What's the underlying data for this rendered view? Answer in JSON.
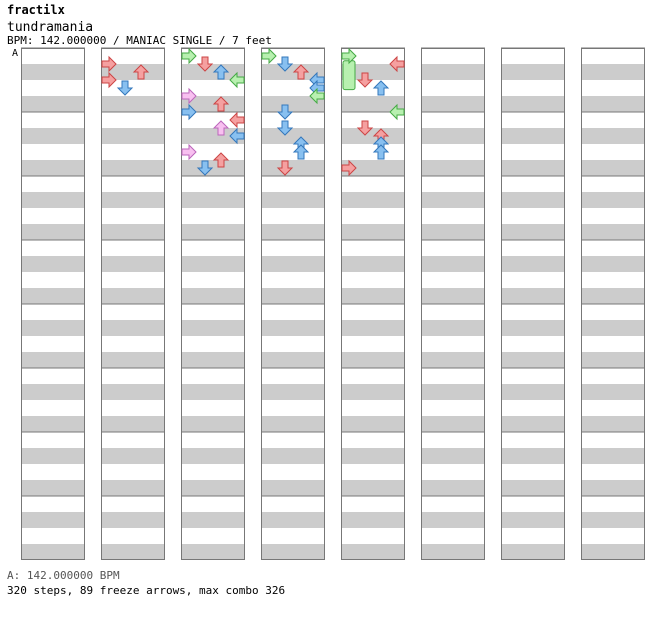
{
  "header": {
    "artist": "fractilx",
    "title": "tundramania",
    "meta": "BPM: 142.000000 / MANIAC SINGLE / 7 feet"
  },
  "bpm_marker": "A",
  "footer": {
    "bpm": "A: 142.000000 BPM",
    "steps": "320 steps, 89 freeze arrows, max combo 326"
  },
  "colors": {
    "stripe": "#cccccc",
    "border": "#777777",
    "red": "#f5a0a0",
    "red_stroke": "#cc4444",
    "blue": "#88c0f0",
    "blue_stroke": "#3377bb",
    "green": "#b8f0b0",
    "green_stroke": "#44aa44",
    "pink": "#f8c0f0",
    "pink_stroke": "#bb66bb"
  },
  "chart_data": {
    "type": "step-chart",
    "columns": 8,
    "measures_per_column": 8,
    "lanes": [
      "left",
      "down",
      "up",
      "right"
    ],
    "notes": [
      [
        1,
        1,
        "r",
        0
      ],
      [
        1,
        1.5,
        "r",
        2
      ],
      [
        1,
        2,
        "r",
        0
      ],
      [
        1,
        2.5,
        "b",
        1
      ],
      [
        2,
        0.5,
        "g",
        0
      ],
      [
        2,
        1,
        "r",
        1
      ],
      [
        2,
        1.5,
        "b",
        2
      ],
      [
        2,
        2,
        "g",
        3
      ],
      [
        2,
        3,
        "p",
        0
      ],
      [
        2,
        3.5,
        "r",
        2
      ],
      [
        2,
        4,
        "b",
        0
      ],
      [
        2,
        4.5,
        "r",
        3
      ],
      [
        2,
        5,
        "p",
        2
      ],
      [
        2,
        5.5,
        "b",
        3
      ],
      [
        2,
        6.5,
        "p",
        0
      ],
      [
        2,
        7,
        "r",
        2
      ],
      [
        2,
        7.5,
        "b",
        1
      ],
      [
        3,
        0.5,
        "g",
        0
      ],
      [
        3,
        1,
        "b",
        1
      ],
      [
        3,
        1.5,
        "r",
        2
      ],
      [
        3,
        2,
        "b",
        3
      ],
      [
        3,
        2.5,
        "b",
        3
      ],
      [
        3,
        3,
        "g",
        3
      ],
      [
        3,
        4,
        "b",
        1
      ],
      [
        3,
        5,
        "b",
        1
      ],
      [
        3,
        6,
        "b",
        2
      ],
      [
        3,
        6.5,
        "b",
        2
      ],
      [
        3,
        7.5,
        "r",
        1
      ],
      [
        4,
        0.5,
        "g",
        0
      ],
      [
        4,
        1,
        "r",
        3
      ],
      [
        4,
        2,
        "r",
        1
      ],
      [
        4,
        2.5,
        "b",
        2
      ],
      [
        4,
        4,
        "g",
        3
      ],
      [
        4,
        5,
        "r",
        1
      ],
      [
        4,
        5.5,
        "r",
        2
      ],
      [
        4,
        6,
        "b",
        2
      ],
      [
        4,
        6.5,
        "b",
        2
      ],
      [
        4,
        7.5,
        "r",
        0
      ]
    ],
    "holds": [
      [
        4,
        0.8,
        2.6,
        0
      ]
    ]
  }
}
